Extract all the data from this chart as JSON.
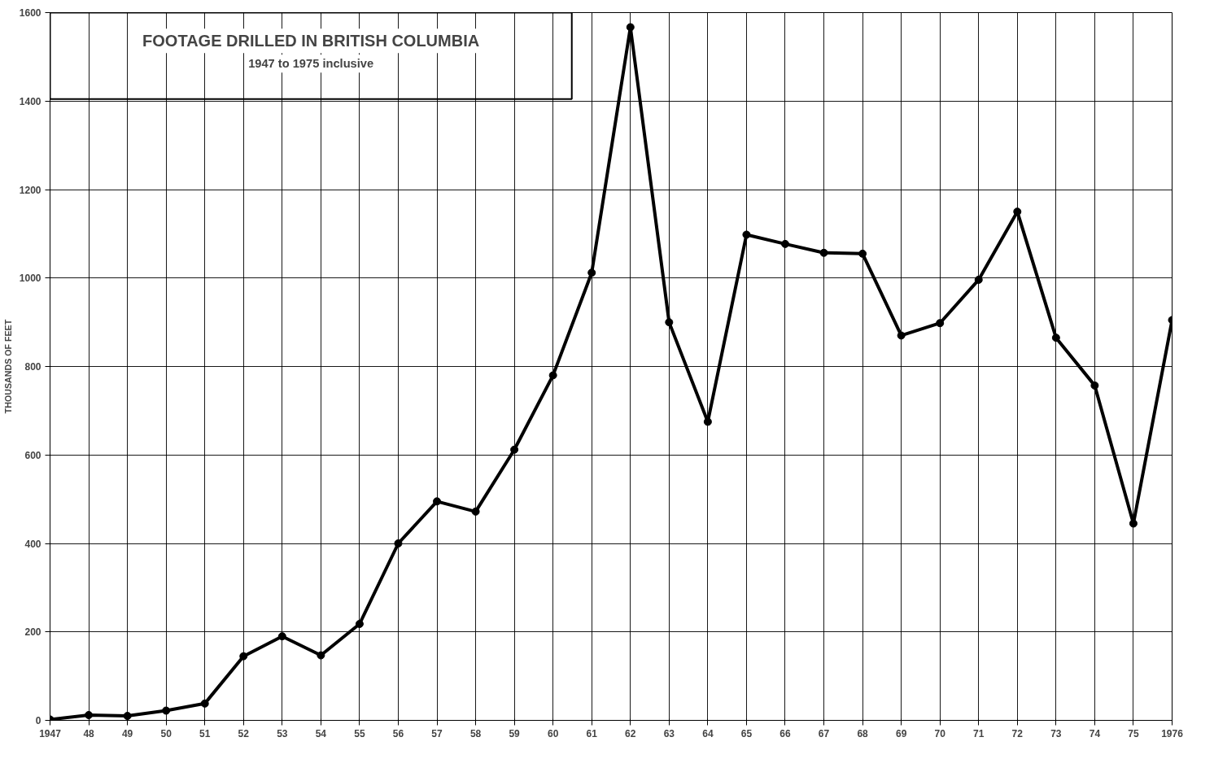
{
  "chart_data": {
    "type": "line",
    "title": "FOOTAGE DRILLED IN BRITISH COLUMBIA",
    "subtitle": "1947 to 1975 inclusive",
    "ylabel": "THOUSANDS OF FEET",
    "x": [
      1947,
      1948,
      1949,
      1950,
      1951,
      1952,
      1953,
      1954,
      1955,
      1956,
      1957,
      1958,
      1959,
      1960,
      1961,
      1962,
      1963,
      1964,
      1965,
      1966,
      1967,
      1968,
      1969,
      1970,
      1971,
      1972,
      1973,
      1974,
      1975,
      1976
    ],
    "series": [
      {
        "color": "#000000",
        "values": [
          2,
          12,
          10,
          22,
          38,
          145,
          190,
          147,
          218,
          400,
          495,
          472,
          612,
          780,
          1012,
          1567,
          900,
          675,
          1098,
          1077,
          1057,
          1055,
          870,
          898,
          996,
          1150,
          865,
          757,
          445,
          905
        ]
      }
    ],
    "xlim": [
      1947,
      1976
    ],
    "ylim": [
      0,
      1600
    ],
    "xticks": [
      1947,
      {
        "value": 1948,
        "label": "48"
      },
      {
        "value": 1949,
        "label": "49"
      },
      {
        "value": 1950,
        "label": "50"
      },
      {
        "value": 1951,
        "label": "51"
      },
      {
        "value": 1952,
        "label": "52"
      },
      {
        "value": 1953,
        "label": "53"
      },
      {
        "value": 1954,
        "label": "54"
      },
      {
        "value": 1955,
        "label": "55"
      },
      {
        "value": 1956,
        "label": "56"
      },
      {
        "value": 1957,
        "label": "57"
      },
      {
        "value": 1958,
        "label": "58"
      },
      {
        "value": 1959,
        "label": "59"
      },
      {
        "value": 1960,
        "label": "60"
      },
      {
        "value": 1961,
        "label": "61"
      },
      {
        "value": 1962,
        "label": "62"
      },
      {
        "value": 1963,
        "label": "63"
      },
      {
        "value": 1964,
        "label": "64"
      },
      {
        "value": 1965,
        "label": "65"
      },
      {
        "value": 1966,
        "label": "66"
      },
      {
        "value": 1967,
        "label": "67"
      },
      {
        "value": 1968,
        "label": "68"
      },
      {
        "value": 1969,
        "label": "69"
      },
      {
        "value": 1970,
        "label": "70"
      },
      {
        "value": 1971,
        "label": "71"
      },
      {
        "value": 1972,
        "label": "72"
      },
      {
        "value": 1973,
        "label": "73"
      },
      {
        "value": 1974,
        "label": "74"
      },
      {
        "value": 1975,
        "label": "75"
      },
      1976
    ],
    "yticks": [
      0,
      200,
      400,
      600,
      800,
      1000,
      1200,
      1400,
      1600
    ],
    "grid": true,
    "marker": "circle",
    "line_style": "solid"
  }
}
